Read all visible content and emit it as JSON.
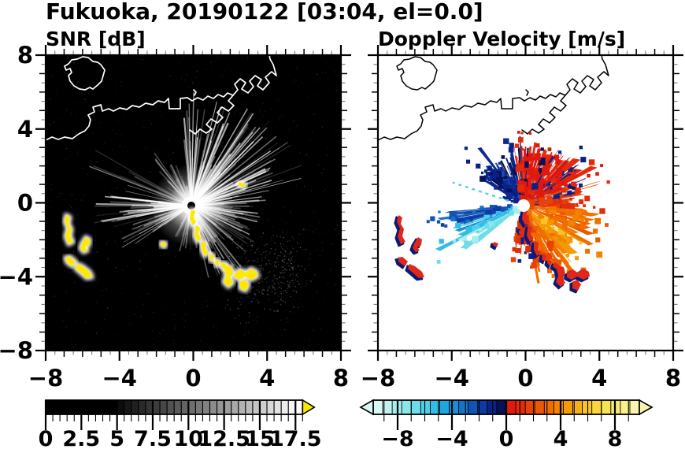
{
  "title": "Fukuoka, 20190122 [03:04, el=0.0]",
  "panels": {
    "snr": {
      "subtitle": "SNR [dB]"
    },
    "doppler": {
      "subtitle": "Doppler Velocity [m/s]"
    }
  },
  "axes": {
    "xlim": [
      -8,
      8
    ],
    "ylim": [
      -8,
      8
    ],
    "xtick_values": [
      -8,
      -4,
      0,
      4,
      8
    ],
    "ytick_values": [
      8,
      4,
      0,
      -4,
      -8
    ],
    "xtick_labels": [
      "−8",
      "−4",
      "0",
      "4",
      "8"
    ],
    "ytick_labels": [
      "8",
      "4",
      "0",
      "−4",
      "−8"
    ]
  },
  "colorbars": {
    "snr": {
      "tick_values": [
        0,
        2.5,
        5,
        7.5,
        10,
        12.5,
        15,
        17.5
      ],
      "tick_labels": [
        "0",
        "2.5",
        "5",
        "7.5",
        "10",
        "12.5",
        "15",
        "17.5"
      ],
      "range": [
        0,
        18
      ],
      "solid_black_until": 5,
      "block_step": 0.5,
      "over_arrow_color": "#f4e900"
    },
    "doppler": {
      "tick_values": [
        -8,
        -4,
        0,
        4,
        8
      ],
      "tick_labels": [
        "−8",
        "−4",
        "0",
        "4",
        "8"
      ],
      "range": [
        -9.8,
        9.8
      ],
      "colors": [
        "#d9f7f4",
        "#c0f2f0",
        "#a6edec",
        "#8ce6ea",
        "#6fdce9",
        "#4fcfe8",
        "#33bde6",
        "#1ea6e0",
        "#1a8ed6",
        "#1673c8",
        "#1254b6",
        "#0e3aa2",
        "#0a2288",
        "#071058",
        "#e01810",
        "#e42c0a",
        "#e84204",
        "#ec5800",
        "#f06e00",
        "#f28400",
        "#f49a06",
        "#f6b016",
        "#f8c428",
        "#f8d63c",
        "#f8e352",
        "#f8eb6e",
        "#f9f08e",
        "#faf3b0"
      ]
    }
  },
  "colors": {
    "snr_background": "#000000",
    "snr_coastline": "#ffffff",
    "doppler_background": "#ffffff",
    "doppler_coastline": "#000000",
    "strong_echo_yellow": "#ffe900",
    "blob_red": "#e0281a",
    "blob_navy": "#0c1a72",
    "beam_white": "#ffffff",
    "axis_black": "#000000",
    "minor_tick_gray": "#7a7a7a"
  },
  "chart_data": [
    {
      "type": "heatmap",
      "panel": "left",
      "title": "SNR [dB]",
      "xlim": [
        -8,
        8
      ],
      "ylim": [
        -8,
        8
      ],
      "xticks": [
        -8,
        -4,
        0,
        4,
        8
      ],
      "yticks": [
        8,
        4,
        0,
        -4,
        -8
      ],
      "colorbar_range": [
        0,
        18
      ],
      "colorbar_ticks": [
        0,
        2.5,
        5,
        7.5,
        10,
        12.5,
        15,
        17.5
      ],
      "radar_center_xy": [
        -0.1,
        -0.2
      ],
      "content": "Black sea background with white coastline of Hakata Bay; radial white SNR beams from radar near origin, brightest toward NE/E and two fans toward W/WSW; saturated yellow (>18 dB) echo trail running SE from radar to about (3.5,-4.8) and ship-like yellow echoes near x −6.8..−5.4, y −1..−4"
    },
    {
      "type": "heatmap",
      "panel": "right",
      "title": "Doppler Velocity [m/s]",
      "xlim": [
        -8,
        8
      ],
      "ylim": [
        -8,
        8
      ],
      "xticks": [
        -8,
        -4,
        0,
        4,
        8
      ],
      "yticks": [
        8,
        4,
        0,
        -4,
        -8
      ],
      "colorbar_range": [
        -9.8,
        9.8
      ],
      "colorbar_ticks": [
        -8,
        -4,
        0,
        4,
        8
      ],
      "radar_center_xy": [
        -0.1,
        -0.2
      ],
      "content": "White background, black coastline; Doppler fan around radar: navy/dark-blue (negative) sector to NNW, cyan-to-light-blue wedge pointing WSW, red (positive) sectors N-NE, orange/yellow-orange fan E-SSE; red echoes fringed navy along the SE trail and at the western ship echoes"
    }
  ],
  "map_shapes": {
    "island": [
      [
        47,
        2
      ],
      [
        40,
        5
      ],
      [
        33,
        6
      ],
      [
        29,
        11
      ],
      [
        24,
        14
      ],
      [
        26,
        19
      ],
      [
        31,
        17
      ],
      [
        33,
        22
      ],
      [
        29,
        26
      ],
      [
        31,
        33
      ],
      [
        36,
        39
      ],
      [
        43,
        43
      ],
      [
        50,
        44
      ],
      [
        56,
        41
      ],
      [
        60,
        43
      ],
      [
        66,
        38
      ],
      [
        71,
        33
      ],
      [
        73,
        26
      ],
      [
        75,
        19
      ],
      [
        70,
        12
      ],
      [
        66,
        9
      ],
      [
        60,
        8
      ],
      [
        54,
        3
      ],
      [
        47,
        2
      ]
    ],
    "coast": [
      [
        0,
        108
      ],
      [
        8,
        104
      ],
      [
        16,
        107
      ],
      [
        24,
        104
      ],
      [
        34,
        106
      ],
      [
        42,
        100
      ],
      [
        50,
        96
      ],
      [
        55,
        90
      ],
      [
        57,
        82
      ],
      [
        54,
        76
      ],
      [
        62,
        72
      ],
      [
        60,
        66
      ],
      [
        70,
        63
      ],
      [
        72,
        71
      ],
      [
        80,
        68
      ],
      [
        86,
        71
      ],
      [
        94,
        67
      ],
      [
        103,
        69
      ],
      [
        110,
        64
      ],
      [
        119,
        66
      ],
      [
        127,
        61
      ],
      [
        136,
        63
      ],
      [
        143,
        58
      ],
      [
        151,
        60
      ],
      [
        156,
        55
      ],
      [
        157,
        68
      ],
      [
        171,
        68
      ],
      [
        171,
        55
      ],
      [
        180,
        54
      ],
      [
        186,
        58
      ],
      [
        193,
        54
      ],
      [
        200,
        57
      ],
      [
        206,
        52
      ],
      [
        213,
        55
      ],
      [
        219,
        50
      ],
      [
        226,
        53
      ],
      [
        231,
        48
      ],
      [
        238,
        51
      ]
    ],
    "piers": [
      [
        [
          238,
          51
        ],
        [
          244,
          44
        ],
        [
          240,
          37
        ],
        [
          247,
          30
        ],
        [
          254,
          35
        ],
        [
          249,
          43
        ],
        [
          257,
          48
        ],
        [
          264,
          40
        ],
        [
          259,
          33
        ],
        [
          266,
          26
        ],
        [
          274,
          31
        ],
        [
          269,
          39
        ],
        [
          276,
          44
        ],
        [
          284,
          35
        ],
        [
          279,
          28
        ],
        [
          287,
          21
        ],
        [
          293,
          26
        ],
        [
          289,
          12
        ],
        [
          285,
          5
        ],
        [
          284,
          0
        ]
      ],
      [
        [
          238,
          51
        ],
        [
          232,
          58
        ],
        [
          239,
          64
        ],
        [
          232,
          71
        ],
        [
          224,
          66
        ],
        [
          218,
          73
        ],
        [
          225,
          79
        ],
        [
          218,
          86
        ],
        [
          210,
          81
        ],
        [
          204,
          88
        ],
        [
          211,
          94
        ],
        [
          204,
          99
        ],
        [
          196,
          94
        ],
        [
          190,
          100
        ],
        [
          183,
          95
        ]
      ]
    ],
    "islets": [
      [
        [
          188,
          44
        ],
        [
          191,
          47
        ],
        [
          189,
          51
        ]
      ]
    ],
    "se_trail_blobs": [
      [
        [
          185,
          196
        ],
        [
          190,
          198
        ],
        [
          188,
          206
        ],
        [
          191,
          212
        ],
        [
          187,
          216
        ],
        [
          183,
          208
        ],
        [
          184,
          200
        ]
      ],
      [
        [
          191,
          216
        ],
        [
          196,
          219
        ],
        [
          194,
          227
        ],
        [
          198,
          233
        ],
        [
          193,
          237
        ],
        [
          189,
          229
        ],
        [
          190,
          221
        ]
      ],
      [
        [
          199,
          236
        ],
        [
          204,
          239
        ],
        [
          203,
          247
        ],
        [
          207,
          251
        ],
        [
          202,
          255
        ],
        [
          198,
          247
        ],
        [
          198,
          240
        ]
      ],
      [
        [
          209,
          252
        ],
        [
          214,
          255
        ],
        [
          212,
          262
        ],
        [
          208,
          259
        ]
      ],
      [
        [
          216,
          259
        ],
        [
          221,
          262
        ],
        [
          219,
          268
        ],
        [
          215,
          264
        ]
      ],
      [
        [
          224,
          263
        ],
        [
          230,
          266
        ],
        [
          227,
          272
        ],
        [
          222,
          268
        ]
      ],
      [
        [
          229,
          267
        ],
        [
          236,
          269
        ],
        [
          238,
          277
        ],
        [
          234,
          282
        ],
        [
          238,
          289
        ],
        [
          232,
          294
        ],
        [
          226,
          288
        ],
        [
          229,
          280
        ],
        [
          227,
          272
        ]
      ],
      [
        [
          240,
          277
        ],
        [
          247,
          272
        ],
        [
          254,
          276
        ],
        [
          261,
          271
        ],
        [
          268,
          275
        ],
        [
          269,
          281
        ],
        [
          261,
          285
        ],
        [
          253,
          281
        ],
        [
          246,
          285
        ],
        [
          240,
          282
        ]
      ],
      [
        [
          247,
          288
        ],
        [
          253,
          285
        ],
        [
          258,
          291
        ],
        [
          254,
          299
        ],
        [
          247,
          296
        ]
      ],
      [
        [
          246,
          161
        ],
        [
          254,
          164
        ],
        [
          252,
          168
        ],
        [
          244,
          165
        ]
      ],
      [
        [
          147,
          237
        ],
        [
          153,
          239
        ],
        [
          151,
          244
        ],
        [
          146,
          241
        ]
      ]
    ],
    "west_blobs": [
      [
        [
          26,
          203
        ],
        [
          31,
          206
        ],
        [
          29,
          214
        ],
        [
          33,
          221
        ],
        [
          31,
          230
        ],
        [
          35,
          237
        ],
        [
          29,
          240
        ],
        [
          25,
          230
        ],
        [
          28,
          220
        ],
        [
          24,
          211
        ]
      ],
      [
        [
          46,
          239
        ],
        [
          51,
          231
        ],
        [
          56,
          234
        ],
        [
          55,
          241
        ],
        [
          50,
          244
        ],
        [
          53,
          248
        ],
        [
          48,
          250
        ],
        [
          44,
          245
        ]
      ],
      [
        [
          25,
          257
        ],
        [
          31,
          256
        ],
        [
          38,
          262
        ],
        [
          34,
          268
        ],
        [
          27,
          263
        ]
      ],
      [
        [
          40,
          265
        ],
        [
          47,
          268
        ],
        [
          56,
          275
        ],
        [
          59,
          282
        ],
        [
          52,
          283
        ],
        [
          44,
          276
        ],
        [
          38,
          271
        ]
      ]
    ]
  }
}
